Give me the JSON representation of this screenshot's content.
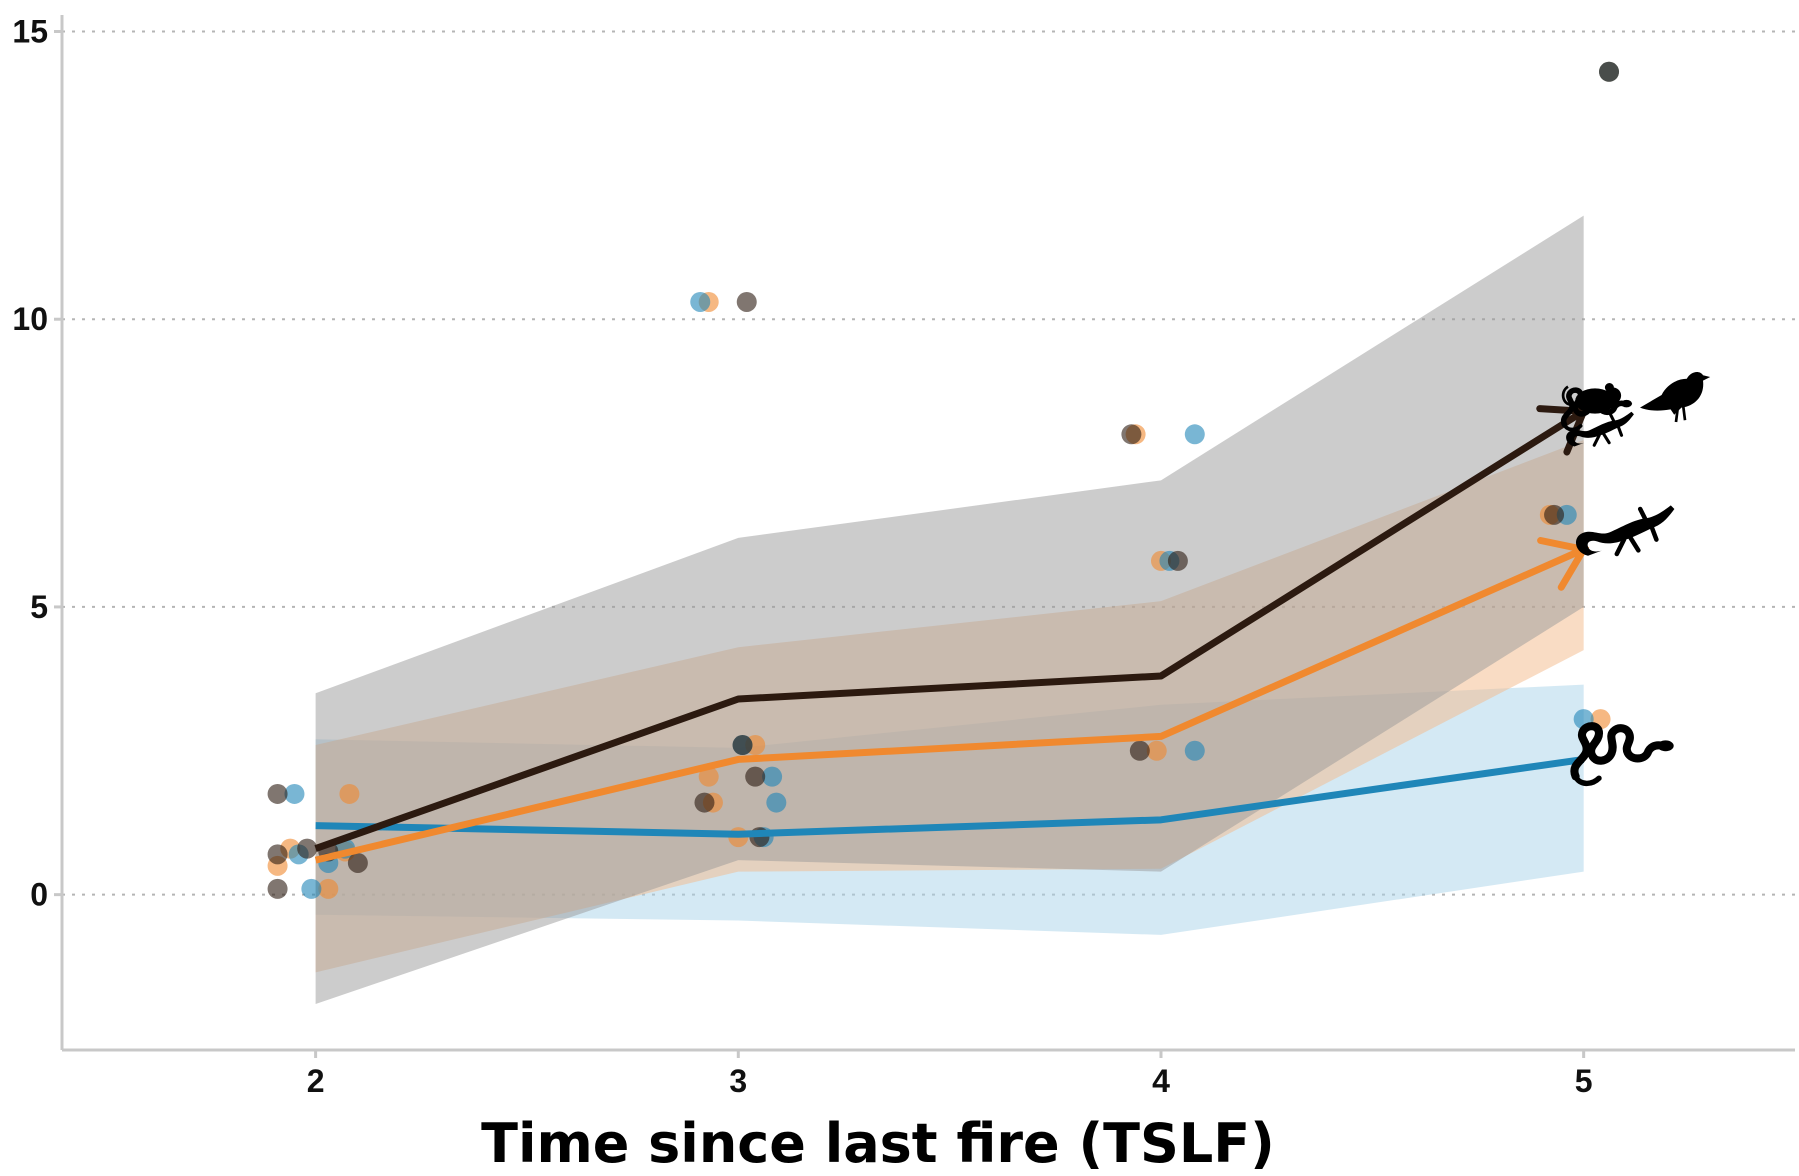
{
  "chart_data": {
    "type": "line",
    "xlabel": "Time since last fire (TSLF)",
    "ylabel": "",
    "x": [
      2,
      3,
      4,
      5
    ],
    "xlim": [
      1.4,
      5.5
    ],
    "ylim": [
      -2.7,
      15.2
    ],
    "x_ticks": [
      {
        "value": 2,
        "label": "2"
      },
      {
        "value": 3,
        "label": "3"
      },
      {
        "value": 4,
        "label": "4"
      },
      {
        "value": 5,
        "label": "5"
      }
    ],
    "y_ticks": [
      {
        "value": 0,
        "label": "0"
      },
      {
        "value": 5,
        "label": "5"
      },
      {
        "value": 10,
        "label": "10"
      },
      {
        "value": 15,
        "label": "15"
      }
    ],
    "grid": "horizontal dotted",
    "series": [
      {
        "color": "#2c1a10",
        "band_color": "#9a9a9a",
        "icon": "snake-mammal-bird-lizard-icon",
        "values": [
          0.8,
          3.4,
          3.8,
          8.4
        ],
        "lower": [
          -1.9,
          0.6,
          0.4,
          5.0
        ],
        "upper": [
          3.5,
          6.2,
          7.2,
          11.8
        ],
        "points": [
          {
            "x": 1.91,
            "y": 1.75
          },
          {
            "x": 1.91,
            "y": 0.7
          },
          {
            "x": 1.91,
            "y": 0.1
          },
          {
            "x": 1.98,
            "y": 0.8
          },
          {
            "x": 2.03,
            "y": 0.75
          },
          {
            "x": 2.1,
            "y": 0.55
          },
          {
            "x": 3.02,
            "y": 10.3
          },
          {
            "x": 3.01,
            "y": 2.6
          },
          {
            "x": 3.04,
            "y": 2.05
          },
          {
            "x": 3.05,
            "y": 1.0
          },
          {
            "x": 2.92,
            "y": 1.6
          },
          {
            "x": 3.93,
            "y": 8.0
          },
          {
            "x": 4.04,
            "y": 5.8
          },
          {
            "x": 3.95,
            "y": 2.5
          },
          {
            "x": 5.06,
            "y": 14.3
          },
          {
            "x": 4.93,
            "y": 6.6
          }
        ]
      },
      {
        "color": "#f0892f",
        "band_color": "#f4b98a",
        "icon": "lizard-icon",
        "values": [
          0.6,
          2.35,
          2.75,
          6.0
        ],
        "lower": [
          -1.35,
          0.4,
          0.45,
          4.25
        ],
        "upper": [
          2.6,
          4.3,
          5.1,
          7.9
        ],
        "points": [
          {
            "x": 1.91,
            "y": 0.5
          },
          {
            "x": 1.94,
            "y": 0.8
          },
          {
            "x": 2.03,
            "y": 0.1
          },
          {
            "x": 2.08,
            "y": 1.75
          },
          {
            "x": 2.07,
            "y": 0.75
          },
          {
            "x": 2.93,
            "y": 10.3
          },
          {
            "x": 3.04,
            "y": 2.6
          },
          {
            "x": 2.93,
            "y": 2.05
          },
          {
            "x": 2.94,
            "y": 1.6
          },
          {
            "x": 3.0,
            "y": 1.0
          },
          {
            "x": 3.94,
            "y": 8.0
          },
          {
            "x": 4.0,
            "y": 5.8
          },
          {
            "x": 3.99,
            "y": 2.5
          },
          {
            "x": 5.06,
            "y": 14.3
          },
          {
            "x": 4.92,
            "y": 6.6
          },
          {
            "x": 5.04,
            "y": 3.05
          }
        ]
      },
      {
        "color": "#1f86b8",
        "band_color": "#a9d3ea",
        "icon": "snake-icon",
        "values": [
          1.2,
          1.05,
          1.3,
          2.35
        ],
        "lower": [
          -0.35,
          -0.45,
          -0.7,
          0.4
        ],
        "upper": [
          2.7,
          2.55,
          3.3,
          3.65
        ],
        "points": [
          {
            "x": 1.95,
            "y": 1.75
          },
          {
            "x": 1.96,
            "y": 0.7
          },
          {
            "x": 1.99,
            "y": 0.1
          },
          {
            "x": 2.03,
            "y": 0.55
          },
          {
            "x": 2.07,
            "y": 0.8
          },
          {
            "x": 2.91,
            "y": 10.3
          },
          {
            "x": 3.01,
            "y": 2.6
          },
          {
            "x": 3.08,
            "y": 2.05
          },
          {
            "x": 3.09,
            "y": 1.6
          },
          {
            "x": 3.06,
            "y": 1.0
          },
          {
            "x": 4.08,
            "y": 8.0
          },
          {
            "x": 4.02,
            "y": 5.8
          },
          {
            "x": 4.08,
            "y": 2.5
          },
          {
            "x": 5.06,
            "y": 14.3
          },
          {
            "x": 4.96,
            "y": 6.6
          },
          {
            "x": 5.0,
            "y": 3.05
          }
        ]
      }
    ]
  }
}
